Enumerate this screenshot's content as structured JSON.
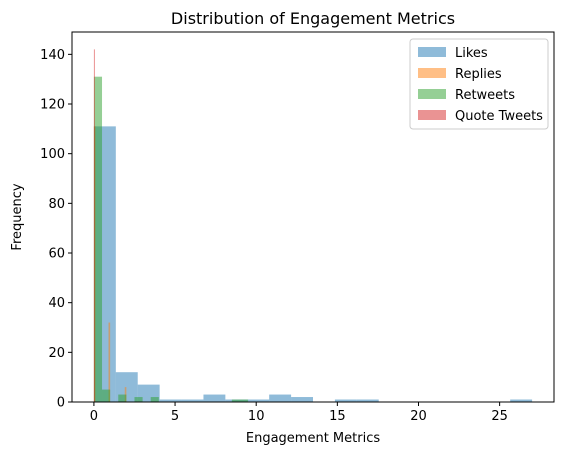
{
  "chart_data": {
    "type": "histogram",
    "title": "Distribution of Engagement Metrics",
    "xlabel": "Engagement Metrics",
    "ylabel": "Frequency",
    "xlim": [
      -1.35,
      28.35
    ],
    "ylim": [
      0,
      149
    ],
    "xticks": [
      0,
      5,
      10,
      15,
      20,
      25
    ],
    "yticks": [
      0,
      20,
      40,
      60,
      80,
      100,
      120,
      140
    ],
    "legend_position": "top-right",
    "series": [
      {
        "name": "Likes",
        "color": "#1f77b4",
        "bins": [
          {
            "x0": 0.0,
            "x1": 1.35,
            "count": 111
          },
          {
            "x0": 1.35,
            "x1": 2.7,
            "count": 12
          },
          {
            "x0": 2.7,
            "x1": 4.05,
            "count": 7
          },
          {
            "x0": 4.05,
            "x1": 5.4,
            "count": 1
          },
          {
            "x0": 5.4,
            "x1": 6.75,
            "count": 1
          },
          {
            "x0": 6.75,
            "x1": 8.1,
            "count": 3
          },
          {
            "x0": 8.1,
            "x1": 9.45,
            "count": 1
          },
          {
            "x0": 9.45,
            "x1": 10.8,
            "count": 1
          },
          {
            "x0": 10.8,
            "x1": 12.15,
            "count": 3
          },
          {
            "x0": 12.15,
            "x1": 13.5,
            "count": 2
          },
          {
            "x0": 13.5,
            "x1": 14.85,
            "count": 0
          },
          {
            "x0": 14.85,
            "x1": 16.2,
            "count": 1
          },
          {
            "x0": 16.2,
            "x1": 17.55,
            "count": 1
          },
          {
            "x0": 17.55,
            "x1": 18.9,
            "count": 0
          },
          {
            "x0": 18.9,
            "x1": 20.25,
            "count": 0
          },
          {
            "x0": 20.25,
            "x1": 21.6,
            "count": 0
          },
          {
            "x0": 21.6,
            "x1": 22.95,
            "count": 0
          },
          {
            "x0": 22.95,
            "x1": 24.3,
            "count": 0
          },
          {
            "x0": 24.3,
            "x1": 25.65,
            "count": 0
          },
          {
            "x0": 25.65,
            "x1": 27.0,
            "count": 1
          }
        ]
      },
      {
        "name": "Replies",
        "color": "#ff7f0e",
        "bins": [
          {
            "x0": 0.0,
            "x1": 0.1,
            "count": 111
          },
          {
            "x0": 0.9,
            "x1": 1.0,
            "count": 32
          },
          {
            "x0": 1.9,
            "x1": 2.0,
            "count": 6
          }
        ]
      },
      {
        "name": "Retweets",
        "color": "#2ca02c",
        "bins": [
          {
            "x0": 0.0,
            "x1": 0.5,
            "count": 131
          },
          {
            "x0": 0.5,
            "x1": 1.0,
            "count": 5
          },
          {
            "x0": 1.0,
            "x1": 1.5,
            "count": 0
          },
          {
            "x0": 1.5,
            "x1": 2.0,
            "count": 3
          },
          {
            "x0": 2.0,
            "x1": 2.5,
            "count": 0
          },
          {
            "x0": 2.5,
            "x1": 3.0,
            "count": 2
          },
          {
            "x0": 3.0,
            "x1": 3.5,
            "count": 0
          },
          {
            "x0": 3.5,
            "x1": 4.0,
            "count": 2
          },
          {
            "x0": 4.0,
            "x1": 4.5,
            "count": 0
          },
          {
            "x0": 4.5,
            "x1": 5.0,
            "count": 0
          },
          {
            "x0": 8.5,
            "x1": 9.0,
            "count": 1
          },
          {
            "x0": 9.0,
            "x1": 9.5,
            "count": 1
          }
        ]
      },
      {
        "name": "Quote Tweets",
        "color": "#d62728",
        "bins": [
          {
            "x0": 0.0,
            "x1": 0.05,
            "count": 142
          }
        ]
      }
    ]
  }
}
